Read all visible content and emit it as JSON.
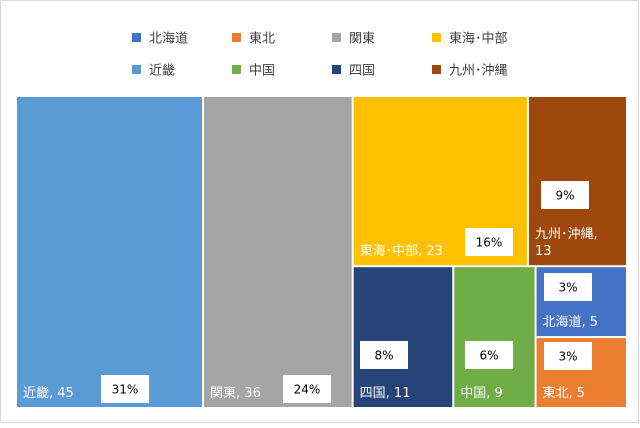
{
  "chart_data": {
    "type": "treemap",
    "title": "",
    "legend_position": "top",
    "items": [
      {
        "name": "北海道",
        "value": 5,
        "percent": "3%",
        "label": "北海道, 5",
        "color": "#4472C4"
      },
      {
        "name": "東北",
        "value": 5,
        "percent": "3%",
        "label": "東北, 5",
        "color": "#ED7D31"
      },
      {
        "name": "関東",
        "value": 36,
        "percent": "24%",
        "label": "関東, 36",
        "color": "#A5A5A5"
      },
      {
        "name": "東海･中部",
        "value": 23,
        "percent": "16%",
        "label": "東海･中部, 23",
        "color": "#FFC000"
      },
      {
        "name": "近畿",
        "value": 45,
        "percent": "31%",
        "label": "近畿, 45",
        "color": "#5B9BD5"
      },
      {
        "name": "中国",
        "value": 9,
        "percent": "6%",
        "label": "中国, 9",
        "color": "#70AD47"
      },
      {
        "name": "四国",
        "value": 11,
        "percent": "8%",
        "label": "四国, 11",
        "color": "#264478"
      },
      {
        "name": "九州･沖縄",
        "value": 13,
        "percent": "9%",
        "label": "九州･沖縄,",
        "label2": "13",
        "color": "#9E480E"
      }
    ]
  }
}
